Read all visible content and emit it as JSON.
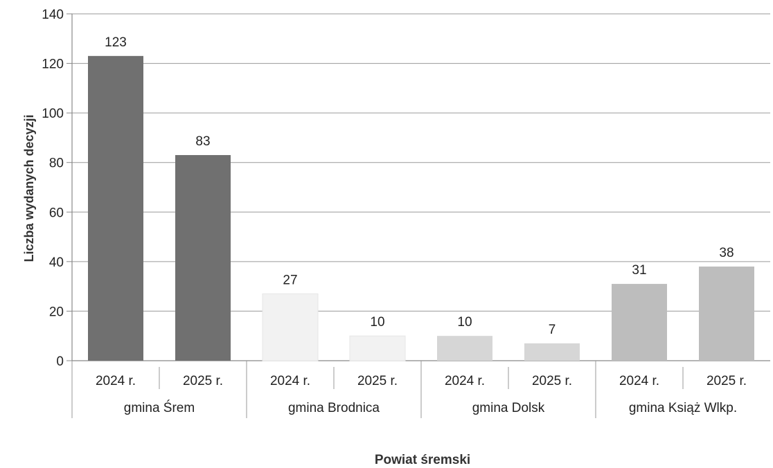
{
  "chart_data": {
    "type": "bar",
    "title": "",
    "xlabel": "Powiat śremski",
    "ylabel": "Liczba wydanych decyzji",
    "ylim": [
      0,
      140
    ],
    "yticks": [
      0,
      20,
      40,
      60,
      80,
      100,
      120,
      140
    ],
    "grid": true,
    "groups": [
      {
        "name": "gmina Śrem",
        "categories": [
          "2024 r.",
          "2025 r."
        ],
        "values": [
          123,
          83
        ]
      },
      {
        "name": "gmina Brodnica",
        "categories": [
          "2024 r.",
          "2025 r."
        ],
        "values": [
          27,
          10
        ]
      },
      {
        "name": "gmina Dolsk",
        "categories": [
          "2024 r.",
          "2025 r."
        ],
        "values": [
          10,
          7
        ]
      },
      {
        "name": "gmina Książ Wlkp.",
        "categories": [
          "2024 r.",
          "2025 r."
        ],
        "values": [
          31,
          38
        ]
      }
    ],
    "colors": {
      "gmina Śrem": "#707070",
      "gmina Brodnica": "#f2f2f2",
      "gmina Dolsk": "#d6d6d6",
      "gmina Książ Wlkp.": "#bdbdbd"
    }
  }
}
